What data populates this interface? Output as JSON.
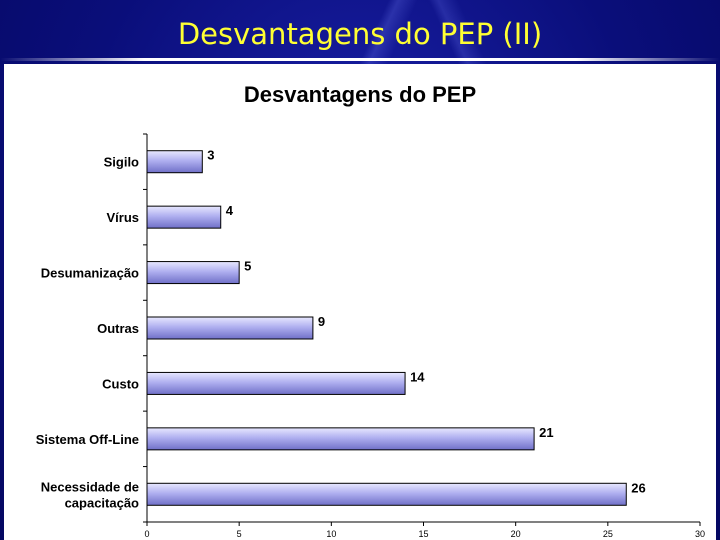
{
  "slide": {
    "title": "Desvantagens do PEP (II)"
  },
  "colors": {
    "background": "#0a0e7a",
    "title_text": "#ffff33",
    "bar_light": "#e8e8ff",
    "bar_mid": "#b0b0f0",
    "bar_dark": "#7070c8"
  },
  "chart_data": {
    "type": "bar",
    "orientation": "horizontal",
    "title": "Desvantagens do PEP",
    "categories": [
      "Sigilo",
      "Vírus",
      "Desumanização",
      "Outras",
      "Custo",
      "Sistema Off-Line",
      "Necessidade de capacitação"
    ],
    "category_lines": [
      [
        "Sigilo"
      ],
      [
        "Vírus"
      ],
      [
        "Desumanização"
      ],
      [
        "Outras"
      ],
      [
        "Custo"
      ],
      [
        "Sistema Off-Line"
      ],
      [
        "Necessidade de",
        "capacitação"
      ]
    ],
    "values": [
      3,
      4,
      5,
      9,
      14,
      21,
      26
    ],
    "xlim": [
      0,
      30
    ],
    "xticks": [
      0,
      5,
      10,
      15,
      20,
      25,
      30
    ],
    "xlabel": "",
    "ylabel": "",
    "grid": false,
    "data_labels": true
  }
}
